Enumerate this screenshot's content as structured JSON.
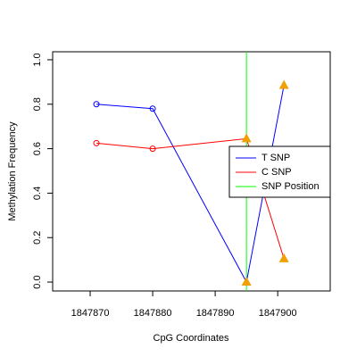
{
  "chart_data": {
    "type": "line",
    "x_label": "CpG Coordinates",
    "y_label": "Methylation Frequency",
    "x": [
      1847871,
      1847880,
      1847895,
      1847901
    ],
    "series": [
      {
        "name": "T SNP",
        "color": "#0000ff",
        "values": [
          0.8,
          0.78,
          0.0,
          0.885
        ],
        "markers": [
          "circle",
          "circle",
          "triangle",
          "triangle"
        ]
      },
      {
        "name": "C SNP",
        "color": "#ff0000",
        "values": [
          0.625,
          0.6,
          0.645,
          0.105
        ],
        "markers": [
          "circle",
          "circle",
          "triangle",
          "triangle"
        ]
      }
    ],
    "triangle_color": "#f0a000",
    "snp_position": {
      "name": "SNP Position",
      "color": "#00ff00",
      "x": 1847895
    },
    "xlim": [
      1847864,
      1847908.4
    ],
    "ylim": [
      -0.04,
      1.036
    ],
    "xticks": [
      1847870,
      1847880,
      1847890,
      1847900
    ],
    "yticks": [
      {
        "value": 0,
        "label": "0.0"
      },
      0.2,
      0.4,
      0.6,
      0.8,
      {
        "value": 1,
        "label": "1.0"
      }
    ],
    "legend": "right"
  }
}
